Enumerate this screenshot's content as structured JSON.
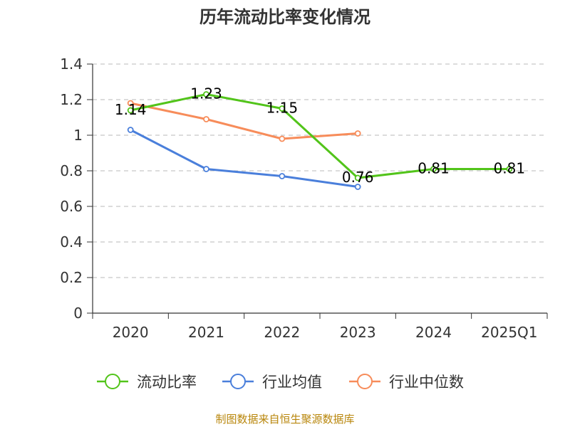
{
  "chart_data": {
    "type": "line",
    "title": "历年流动比率变化情况",
    "categories": [
      "2020",
      "2021",
      "2022",
      "2023",
      "2024",
      "2025Q1"
    ],
    "ylim": [
      0,
      1.4
    ],
    "yticks": [
      "0",
      "0.2",
      "0.4",
      "0.6",
      "0.8",
      "1",
      "1.2",
      "1.4"
    ],
    "ytick_values": [
      0,
      0.2,
      0.4,
      0.6,
      0.8,
      1.0,
      1.2,
      1.4
    ],
    "grid": true,
    "legend_position": "bottom",
    "series": [
      {
        "name": "流动比率",
        "color": "#52c41a",
        "values": [
          1.14,
          1.23,
          1.15,
          0.76,
          0.81,
          0.81
        ],
        "labels": [
          "1.14",
          "1.23",
          "1.15",
          "0.76",
          "0.81",
          "0.81"
        ]
      },
      {
        "name": "行业均值",
        "color": "#4a7fdb",
        "values": [
          1.03,
          0.81,
          0.77,
          0.71,
          null,
          null
        ]
      },
      {
        "name": "行业中位数",
        "color": "#f78c5a",
        "values": [
          1.18,
          1.09,
          0.98,
          1.01,
          null,
          null
        ]
      }
    ]
  },
  "source": "制图数据来自恒生聚源数据库"
}
